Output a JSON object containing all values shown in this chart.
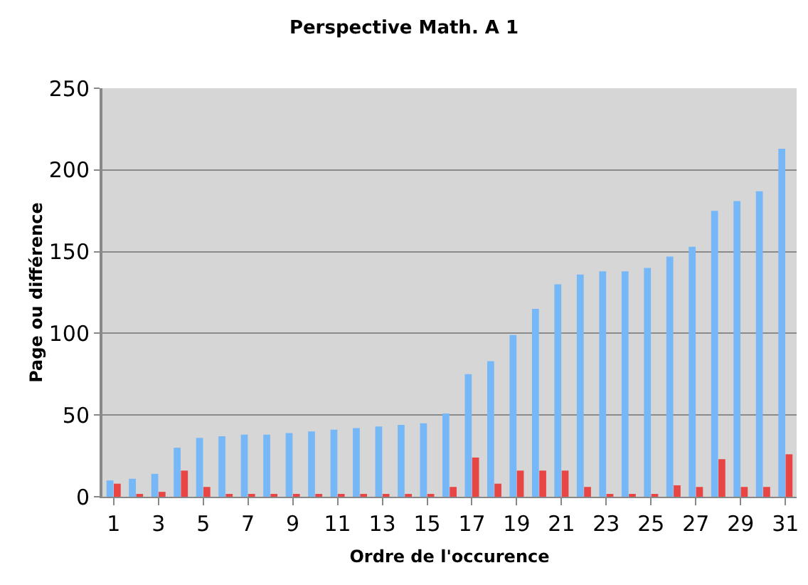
{
  "chart_data": {
    "type": "bar",
    "title": "Perspective Math. A 1",
    "xlabel": "Ordre de l'occurence",
    "ylabel": "Page ou différence",
    "x": [
      1,
      2,
      3,
      4,
      5,
      6,
      7,
      8,
      9,
      10,
      11,
      12,
      13,
      14,
      15,
      16,
      17,
      18,
      19,
      20,
      21,
      22,
      23,
      24,
      25,
      26,
      27,
      28,
      29,
      30,
      31
    ],
    "series": [
      {
        "color": "#76b7f7",
        "values": [
          10,
          11,
          14,
          30,
          36,
          37,
          38,
          38,
          39,
          40,
          41,
          42,
          43,
          44,
          45,
          51,
          75,
          83,
          99,
          115,
          130,
          136,
          138,
          138,
          140,
          147,
          153,
          175,
          181,
          187,
          213
        ]
      },
      {
        "color": "#e84545",
        "values": [
          8,
          1,
          3,
          16,
          6,
          1,
          1,
          1,
          1,
          1,
          1,
          1,
          1,
          1,
          1,
          6,
          24,
          8,
          16,
          16,
          16,
          6,
          1,
          1,
          1,
          7,
          6,
          23,
          6,
          6,
          26
        ]
      }
    ],
    "xlim": [
      0.5,
      31.5
    ],
    "xticks": [
      1,
      3,
      5,
      7,
      9,
      11,
      13,
      15,
      17,
      19,
      21,
      23,
      25,
      27,
      29,
      31
    ],
    "ylim": [
      0,
      250
    ],
    "yticks": [
      0,
      50,
      100,
      150,
      200,
      250
    ],
    "grid": "y"
  }
}
